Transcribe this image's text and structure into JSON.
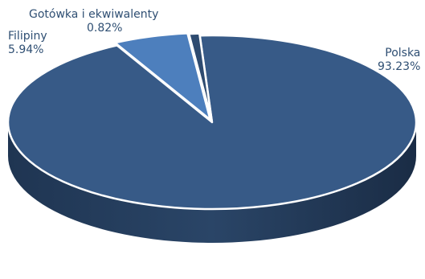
{
  "chart_data": {
    "type": "pie",
    "title": "",
    "legend": "none",
    "slices": [
      {
        "name": "Polska",
        "value": 93.23,
        "label": "93.23%",
        "color": "#375a87"
      },
      {
        "name": "Filipiny",
        "value": 5.94,
        "label": "5.94%",
        "color": "#4d7fbd"
      },
      {
        "name": "Gotówka i ekwiwalenty",
        "value": 0.82,
        "label": "0.82%",
        "color": "#2e4b70"
      }
    ]
  }
}
